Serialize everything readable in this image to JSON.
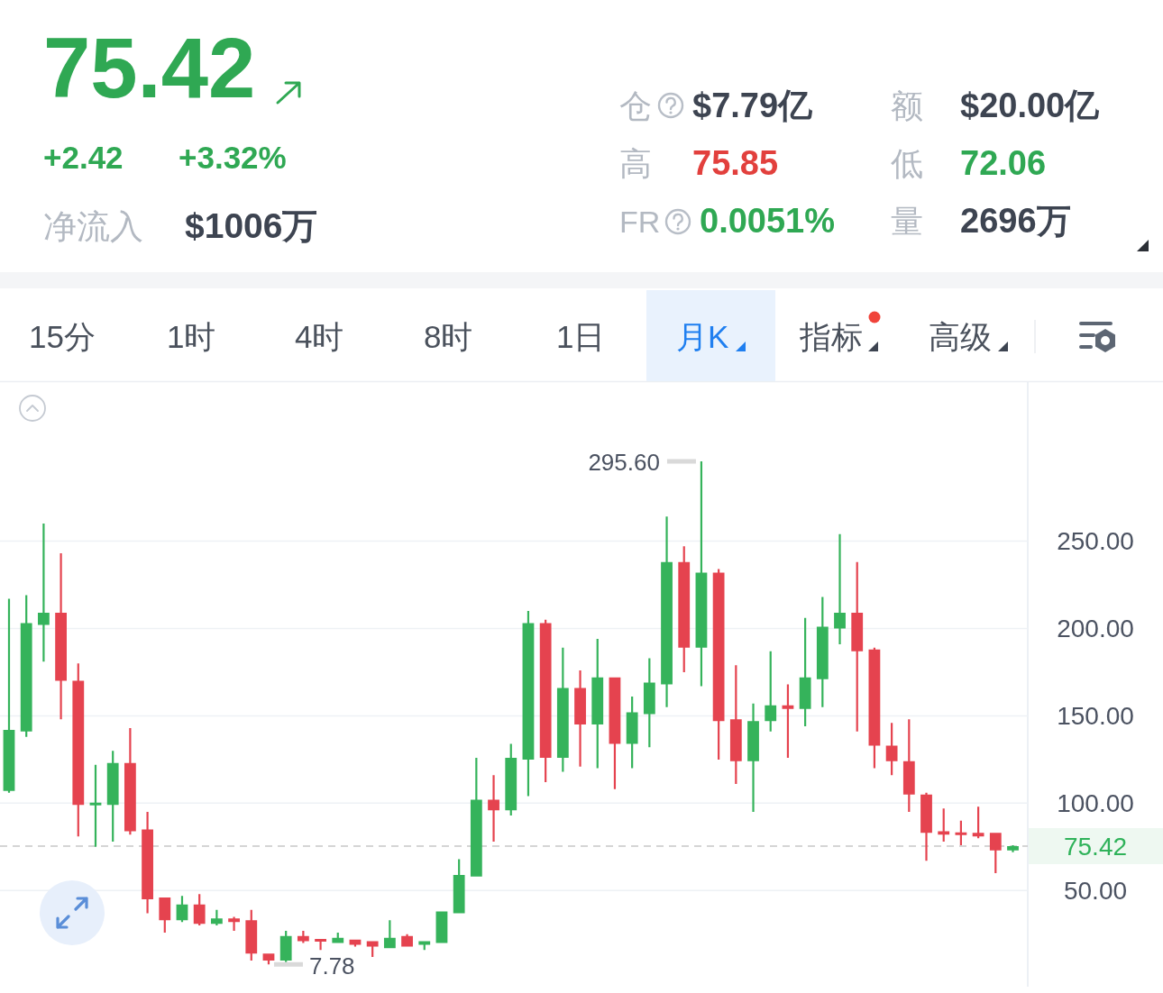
{
  "chart_data": [
    {
      "type": "other",
      "annotations": [
        "75.42",
        "+2.42",
        "+3.32%",
        "净流入",
        "$1006万",
        "仓",
        "$7.79亿",
        "额",
        "$20.00亿",
        "高",
        "75.85",
        "低",
        "72.06",
        "FR",
        "0.0051%",
        "量",
        "2696万",
        "15分",
        "1时",
        "4时",
        "8时",
        "1日",
        "月K",
        "指标",
        "高级"
      ]
    },
    {
      "type": "candlestick",
      "categories": [
        null,
        null,
        null,
        null,
        null,
        null,
        null,
        null,
        null,
        null,
        null,
        null,
        null,
        null,
        null,
        null,
        null,
        null,
        null,
        null,
        null,
        null,
        null,
        null,
        null,
        null,
        null,
        null,
        null,
        null,
        null,
        null,
        null,
        null,
        null,
        null,
        null,
        null,
        null,
        null,
        null,
        null,
        null,
        null,
        null,
        null,
        null,
        null,
        null,
        null,
        null,
        null,
        null,
        null,
        null,
        null,
        null,
        null,
        null
      ],
      "ohlc": [
        [
          107,
          217,
          106,
          142
        ],
        [
          141,
          219,
          138,
          203
        ],
        [
          202,
          260,
          181,
          209
        ],
        [
          209,
          243,
          148,
          170
        ],
        [
          170,
          180,
          81,
          99
        ],
        [
          99,
          122,
          75,
          100
        ],
        [
          99,
          130,
          78,
          123
        ],
        [
          123,
          143,
          82,
          84
        ],
        [
          85,
          95,
          37,
          45
        ],
        [
          46,
          46,
          26,
          33
        ],
        [
          33,
          47,
          32,
          42
        ],
        [
          42,
          48,
          30,
          31
        ],
        [
          31,
          39,
          30,
          34
        ],
        [
          34,
          35,
          27,
          32
        ],
        [
          33,
          39,
          10,
          14
        ],
        [
          14,
          14,
          7.78,
          10
        ],
        [
          10,
          27,
          9,
          24
        ],
        [
          24,
          27,
          20,
          21
        ],
        [
          22,
          22,
          16,
          21
        ],
        [
          20,
          26,
          20,
          23
        ],
        [
          22,
          22,
          18,
          19
        ],
        [
          21,
          21,
          12,
          18
        ],
        [
          17,
          33,
          17,
          23
        ],
        [
          24,
          25,
          18,
          18
        ],
        [
          19,
          21,
          16,
          21
        ],
        [
          20,
          38,
          20,
          38
        ],
        [
          37,
          68,
          37,
          59
        ],
        [
          58,
          126,
          58,
          102
        ],
        [
          102,
          116,
          78,
          96
        ],
        [
          96,
          134,
          93,
          126
        ],
        [
          125,
          210,
          104,
          203
        ],
        [
          203,
          205,
          112,
          126
        ],
        [
          126,
          189,
          118,
          166
        ],
        [
          166,
          176,
          121,
          145
        ],
        [
          145,
          194,
          120,
          172
        ],
        [
          172,
          172,
          108,
          134
        ],
        [
          134,
          161,
          120,
          152
        ],
        [
          151,
          183,
          132,
          169
        ],
        [
          168,
          264,
          155,
          238
        ],
        [
          238,
          247,
          175,
          189
        ],
        [
          189,
          295.6,
          167,
          232
        ],
        [
          232,
          234,
          125,
          147
        ],
        [
          148,
          179,
          111,
          124
        ],
        [
          124,
          157,
          95,
          147
        ],
        [
          147,
          187,
          141,
          156
        ],
        [
          156,
          168,
          126,
          154
        ],
        [
          154,
          206,
          144,
          172
        ],
        [
          171,
          218,
          155,
          201
        ],
        [
          200,
          254,
          191,
          209
        ],
        [
          209,
          238,
          141,
          187
        ],
        [
          188,
          189,
          120,
          133
        ],
        [
          133,
          146,
          116,
          124
        ],
        [
          124,
          148,
          95,
          105
        ],
        [
          105,
          106,
          67,
          83
        ],
        [
          84,
          97,
          78,
          82
        ],
        [
          83,
          90,
          76,
          82
        ],
        [
          83,
          98,
          80,
          81
        ],
        [
          83,
          83,
          60,
          73
        ],
        [
          73,
          76,
          72,
          75.42
        ]
      ],
      "colors": [
        "#35b35b",
        "#35b35b",
        "#35b35b",
        "#e5434f",
        "#e5434f",
        "#35b35b",
        "#35b35b",
        "#e5434f",
        "#e5434f",
        "#e5434f",
        "#35b35b",
        "#e5434f",
        "#35b35b",
        "#e5434f",
        "#e5434f",
        "#e5434f",
        "#35b35b",
        "#e5434f",
        "#e5434f",
        "#35b35b",
        "#e5434f",
        "#e5434f",
        "#35b35b",
        "#e5434f",
        "#35b35b",
        "#35b35b",
        "#35b35b",
        "#35b35b",
        "#e5434f",
        "#35b35b",
        "#35b35b",
        "#e5434f",
        "#35b35b",
        "#e5434f",
        "#35b35b",
        "#e5434f",
        "#35b35b",
        "#35b35b",
        "#35b35b",
        "#e5434f",
        "#35b35b",
        "#e5434f",
        "#e5434f",
        "#35b35b",
        "#35b35b",
        "#e5434f",
        "#35b35b",
        "#35b35b",
        "#35b35b",
        "#e5434f",
        "#e5434f",
        "#e5434f",
        "#e5434f",
        "#e5434f",
        "#e5434f",
        "#e5434f",
        "#e5434f",
        "#e5434f",
        "#35b35b"
      ],
      "ylim": [
        -5,
        341
      ],
      "yticks": [
        {
          "value": 50,
          "label": "50.00"
        },
        {
          "value": 100,
          "label": "100.00"
        },
        {
          "value": 150,
          "label": "150.00"
        },
        {
          "value": 200,
          "label": "200.00"
        },
        {
          "value": 250,
          "label": "250.00"
        }
      ],
      "grid": "y",
      "tick_labels": "y",
      "ref_lines": [
        {
          "axis": "y",
          "value": 75.42,
          "label": "75.42",
          "color": "#c8c8c8",
          "line_style": "dashed"
        }
      ],
      "annotations": [
        "295.60",
        "7.78"
      ]
    }
  ]
}
